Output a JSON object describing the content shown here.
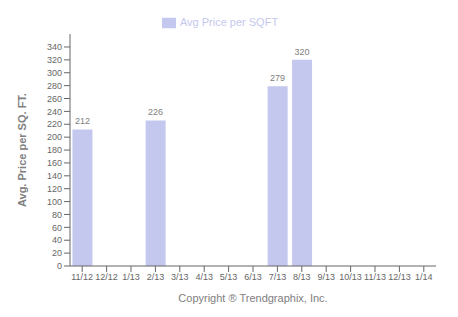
{
  "chart_data": {
    "type": "bar",
    "categories": [
      "11/12",
      "12/12",
      "1/13",
      "2/13",
      "3/13",
      "4/13",
      "5/13",
      "6/13",
      "7/13",
      "8/13",
      "9/13",
      "10/13",
      "11/13",
      "12/13",
      "1/14"
    ],
    "series": [
      {
        "name": "Avg Price per SQFT",
        "color": "#c5c8ee",
        "values": [
          212,
          0,
          0,
          226,
          0,
          0,
          0,
          0,
          279,
          320,
          0,
          0,
          0,
          0,
          0
        ]
      }
    ],
    "ylabel": "Avg. Price per SQ. FT.",
    "xlabel": "Copyright ® Trendgraphix, Inc.",
    "ylim": [
      0,
      360
    ],
    "yticks": [
      0,
      20,
      40,
      60,
      80,
      100,
      120,
      140,
      160,
      180,
      200,
      220,
      240,
      260,
      280,
      300,
      320,
      340
    ],
    "grid": false,
    "legend": "top",
    "data_labels": true
  }
}
